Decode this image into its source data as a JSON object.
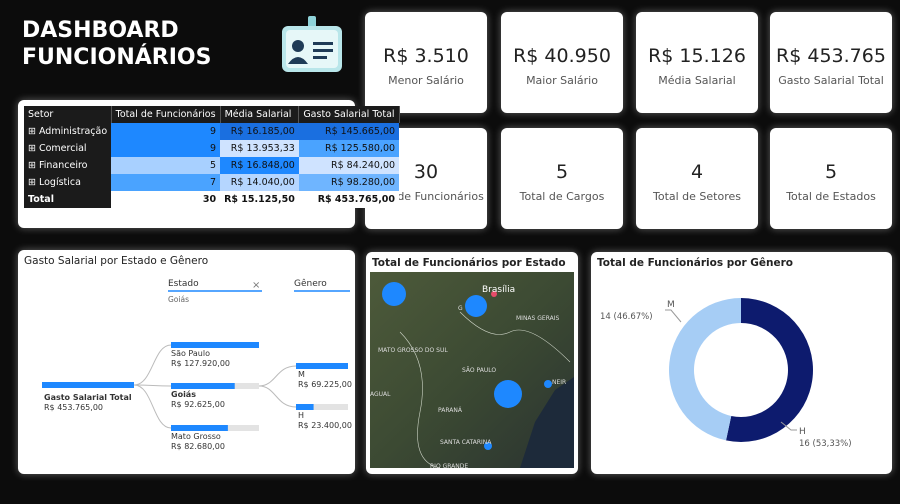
{
  "header": {
    "line1": "DASHBOARD",
    "line2": "FUNCIONÁRIOS"
  },
  "kpis": [
    {
      "value": "R$ 3.510",
      "label": "Menor Salário"
    },
    {
      "value": "R$ 40.950",
      "label": "Maior Salário"
    },
    {
      "value": "R$ 15.126",
      "label": "Média Salarial"
    },
    {
      "value": "R$ 453.765",
      "label": "Gasto Salarial Total"
    },
    {
      "value": "30",
      "label": "Total de Funcionários"
    },
    {
      "value": "5",
      "label": "Total de Cargos"
    },
    {
      "value": "4",
      "label": "Total de Setores"
    },
    {
      "value": "5",
      "label": "Total de Estados"
    }
  ],
  "table": {
    "columns": [
      "Setor",
      "Total de Funcionários",
      "Média Salarial",
      "Gasto Salarial Total"
    ],
    "rows": [
      [
        "Administração",
        "9",
        "R$ 16.185,00",
        "R$ 145.665,00"
      ],
      [
        "Comercial",
        "9",
        "R$ 13.953,33",
        "R$ 125.580,00"
      ],
      [
        "Financeiro",
        "5",
        "R$ 16.848,00",
        "R$ 84.240,00"
      ],
      [
        "Logística",
        "7",
        "R$ 14.040,00",
        "R$ 98.280,00"
      ]
    ],
    "cell_colors": [
      [
        "#1e88ff",
        "#1a6fe0",
        "#1a6fe0"
      ],
      [
        "#1e88ff",
        "#cfe3ff",
        "#4aa3ff"
      ],
      [
        "#a8d0ff",
        "#1e88ff",
        "#cfe3ff"
      ],
      [
        "#4aa3ff",
        "#b5d6ff",
        "#6fb5ff"
      ]
    ],
    "total": [
      "Total",
      "30",
      "R$ 15.125,50",
      "R$ 453.765,00"
    ]
  },
  "tree": {
    "title": "Gasto Salarial por Estado e Gênero",
    "root": {
      "name": "Gasto Salarial Total",
      "value": 453765,
      "value_label": "R$ 453.765,00"
    },
    "level1": {
      "header": "Estado",
      "selected": "Goiás",
      "categories": [
        "São Paulo",
        "Goiás",
        "Mato Grosso"
      ],
      "values": [
        127920,
        92625,
        82680
      ],
      "value_labels": [
        "R$ 127.920,00",
        "R$ 92.625,00",
        "R$ 82.680,00"
      ]
    },
    "level2": {
      "header": "Gênero",
      "categories": [
        "M",
        "H"
      ],
      "values": [
        69225,
        23400
      ],
      "value_labels": [
        "R$ 69.225,00",
        "R$ 23.400,00"
      ]
    },
    "color": "#1e88ff"
  },
  "map": {
    "title": "Total de Funcionários por Estado",
    "labels": [
      "Brasília",
      "MINAS GERAIS",
      "MATO GROSSO DO SUL",
      "SÃO PAULO",
      "PARANÁ",
      "SANTA CATARINA",
      "RIO GRANDE",
      "AGUAL",
      "G",
      "NEIR"
    ]
  },
  "chart_data": {
    "type": "donut",
    "title": "Total de Funcionários por Gênero",
    "categories": [
      "M",
      "H"
    ],
    "values": [
      14,
      16
    ],
    "value_labels": [
      "14 (46.67%)",
      "16 (53,33%)"
    ],
    "colors": [
      "#a6cdf5",
      "#0d1b6e"
    ]
  }
}
